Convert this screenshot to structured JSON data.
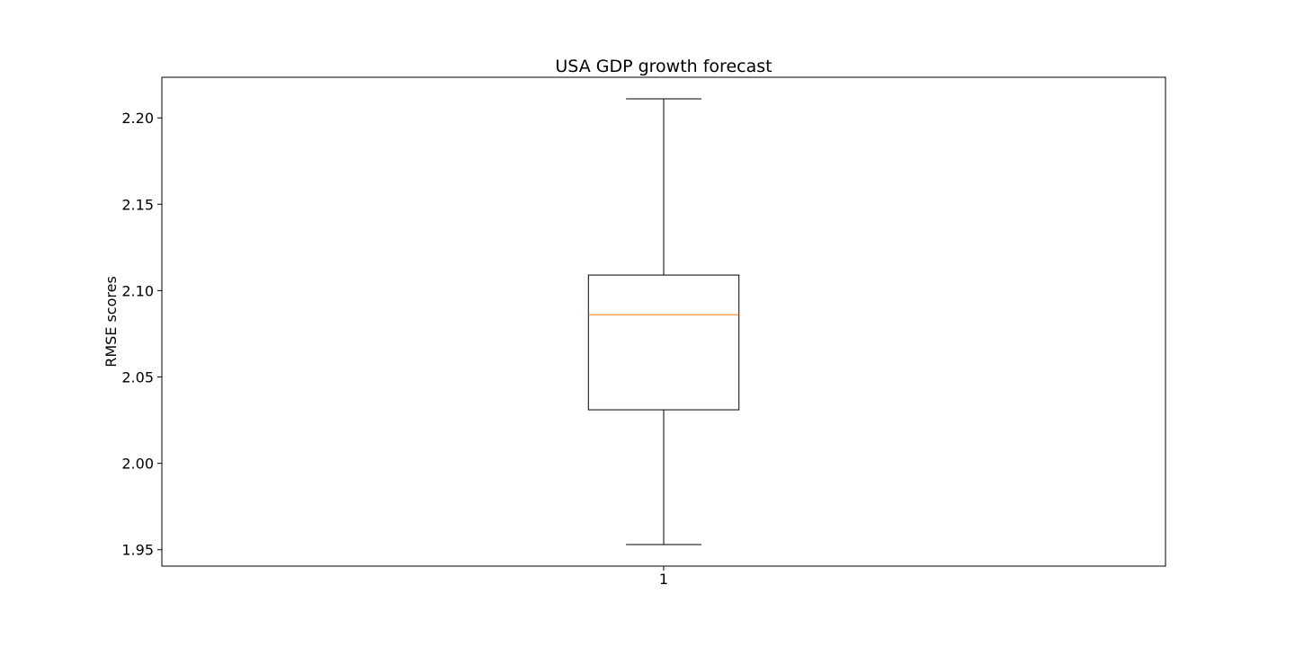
{
  "chart_data": {
    "type": "box",
    "title": "USA GDP growth forecast",
    "xlabel": "",
    "ylabel": "RMSE scores",
    "categories": [
      "1"
    ],
    "boxes": [
      {
        "category": "1",
        "whisker_low": 1.953,
        "q1": 2.031,
        "median": 2.086,
        "q3": 2.109,
        "whisker_high": 2.211
      }
    ],
    "ylim": [
      1.9405,
      2.2235
    ],
    "yticks": [
      1.95,
      2.0,
      2.05,
      2.1,
      2.15,
      2.2
    ],
    "ytick_labels": [
      "1.95",
      "2.00",
      "2.05",
      "2.10",
      "2.15",
      "2.20"
    ],
    "xlim": [
      0.5,
      1.5
    ],
    "grid": false,
    "colors": {
      "box": "#000000",
      "median": "#ff7f0e",
      "whisker": "#000000"
    }
  }
}
